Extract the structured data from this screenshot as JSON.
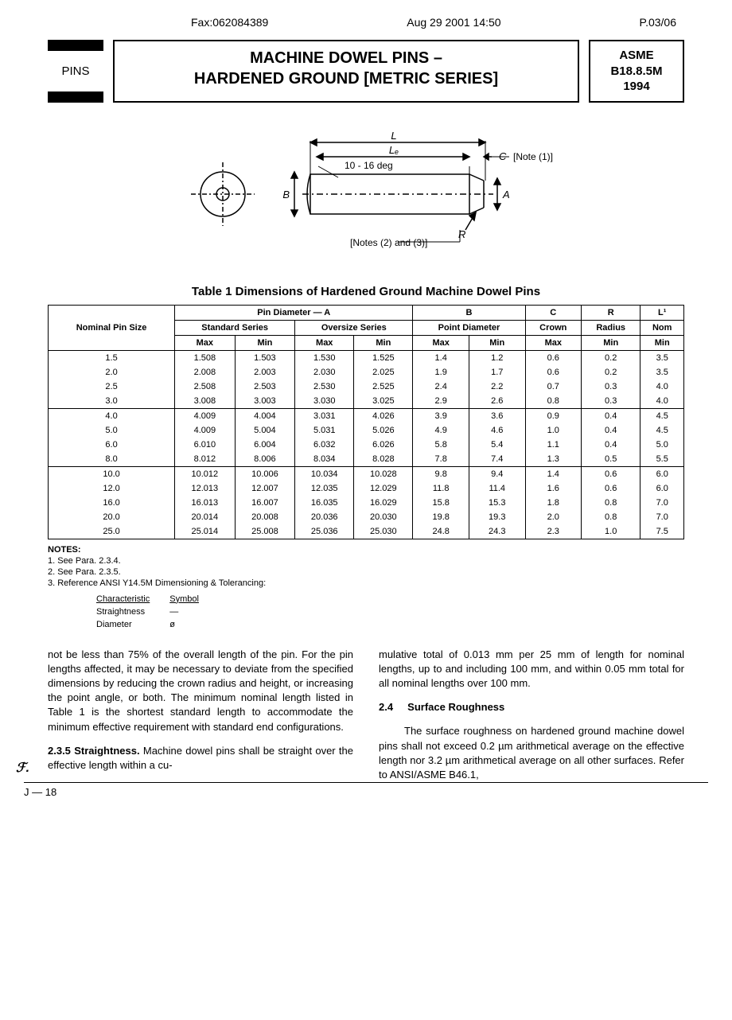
{
  "fax": {
    "number": "Fax:062084389",
    "date": "Aug 29 2001  14:50",
    "page": "P.03/06"
  },
  "pins_label": "PINS",
  "title": {
    "line1": "MACHINE DOWEL PINS –",
    "line2": "HARDENED GROUND [METRIC SERIES]"
  },
  "standard": {
    "org": "ASME",
    "num": "B18.8.5M",
    "year": "1994"
  },
  "diagram": {
    "angle_label": "10 - 16 deg",
    "note1": "[Note (1)]",
    "note23": "[Notes (2) and (3)]",
    "labels": {
      "L": "L",
      "Le": "Lₑ",
      "C": "C",
      "A": "A",
      "B": "B",
      "R": "R"
    }
  },
  "table": {
    "caption": "Table 1   Dimensions of Hardened Ground Machine Dowel Pins",
    "head": {
      "nominal": "Nominal Pin Size",
      "pin_diam": "Pin Diameter — A",
      "std_series": "Standard Series",
      "ovz_series": "Oversize Series",
      "B": "B",
      "pt_diam": "Point Diameter",
      "C": "C",
      "crown": "Crown",
      "R": "R",
      "radius": "Radius",
      "L1": "L¹",
      "nom": "Nom",
      "max": "Max",
      "min": "Min"
    },
    "groups": [
      {
        "rows": [
          {
            "size": "1.5",
            "std_max": "1.508",
            "std_min": "1.503",
            "ovz_max": "1.530",
            "ovz_min": "1.525",
            "b_max": "1.4",
            "b_min": "1.2",
            "c_max": "0.6",
            "r_min": "0.2",
            "l_min": "3.5"
          },
          {
            "size": "2.0",
            "std_max": "2.008",
            "std_min": "2.003",
            "ovz_max": "2.030",
            "ovz_min": "2.025",
            "b_max": "1.9",
            "b_min": "1.7",
            "c_max": "0.6",
            "r_min": "0.2",
            "l_min": "3.5"
          },
          {
            "size": "2.5",
            "std_max": "2.508",
            "std_min": "2.503",
            "ovz_max": "2.530",
            "ovz_min": "2.525",
            "b_max": "2.4",
            "b_min": "2.2",
            "c_max": "0.7",
            "r_min": "0.3",
            "l_min": "4.0"
          },
          {
            "size": "3.0",
            "std_max": "3.008",
            "std_min": "3.003",
            "ovz_max": "3.030",
            "ovz_min": "3.025",
            "b_max": "2.9",
            "b_min": "2.6",
            "c_max": "0.8",
            "r_min": "0.3",
            "l_min": "4.0"
          }
        ]
      },
      {
        "rows": [
          {
            "size": "4.0",
            "std_max": "4.009",
            "std_min": "4.004",
            "ovz_max": "3.031",
            "ovz_min": "4.026",
            "b_max": "3.9",
            "b_min": "3.6",
            "c_max": "0.9",
            "r_min": "0.4",
            "l_min": "4.5"
          },
          {
            "size": "5.0",
            "std_max": "4.009",
            "std_min": "5.004",
            "ovz_max": "5.031",
            "ovz_min": "5.026",
            "b_max": "4.9",
            "b_min": "4.6",
            "c_max": "1.0",
            "r_min": "0.4",
            "l_min": "4.5"
          },
          {
            "size": "6.0",
            "std_max": "6.010",
            "std_min": "6.004",
            "ovz_max": "6.032",
            "ovz_min": "6.026",
            "b_max": "5.8",
            "b_min": "5.4",
            "c_max": "1.1",
            "r_min": "0.4",
            "l_min": "5.0"
          },
          {
            "size": "8.0",
            "std_max": "8.012",
            "std_min": "8.006",
            "ovz_max": "8.034",
            "ovz_min": "8.028",
            "b_max": "7.8",
            "b_min": "7.4",
            "c_max": "1.3",
            "r_min": "0.5",
            "l_min": "5.5"
          }
        ]
      },
      {
        "rows": [
          {
            "size": "10.0",
            "std_max": "10.012",
            "std_min": "10.006",
            "ovz_max": "10.034",
            "ovz_min": "10.028",
            "b_max": "9.8",
            "b_min": "9.4",
            "c_max": "1.4",
            "r_min": "0.6",
            "l_min": "6.0"
          },
          {
            "size": "12.0",
            "std_max": "12.013",
            "std_min": "12.007",
            "ovz_max": "12.035",
            "ovz_min": "12.029",
            "b_max": "11.8",
            "b_min": "11.4",
            "c_max": "1.6",
            "r_min": "0.6",
            "l_min": "6.0"
          },
          {
            "size": "16.0",
            "std_max": "16.013",
            "std_min": "16.007",
            "ovz_max": "16.035",
            "ovz_min": "16.029",
            "b_max": "15.8",
            "b_min": "15.3",
            "c_max": "1.8",
            "r_min": "0.8",
            "l_min": "7.0"
          },
          {
            "size": "20.0",
            "std_max": "20.014",
            "std_min": "20.008",
            "ovz_max": "20.036",
            "ovz_min": "20.030",
            "b_max": "19.8",
            "b_min": "19.3",
            "c_max": "2.0",
            "r_min": "0.8",
            "l_min": "7.0"
          },
          {
            "size": "25.0",
            "std_max": "25.014",
            "std_min": "25.008",
            "ovz_max": "25.036",
            "ovz_min": "25.030",
            "b_max": "24.8",
            "b_min": "24.3",
            "c_max": "2.3",
            "r_min": "1.0",
            "l_min": "7.5"
          }
        ]
      }
    ]
  },
  "notes": {
    "title": "NOTES:",
    "items": [
      "1. See Para. 2.3.4.",
      "2. See Para. 2.3.5.",
      "3. Reference ANSI Y14.5M Dimensioning & Tolerancing:"
    ],
    "char_head_left": "Characteristic",
    "char_head_right": "Symbol",
    "char_rows": [
      {
        "l": "Straightness",
        "r": "—"
      },
      {
        "l": "Diameter",
        "r": "ø"
      }
    ]
  },
  "body": {
    "left_p1": "not be less than 75% of the overall length of the pin. For the pin lengths affected, it may be necessary to deviate from the specified dimensions by reducing the crown radius and height, or increasing the point angle, or both. The minimum nominal length listed in Table 1 is the shortest standard length to accommodate the minimum effective requirement with standard end configurations.",
    "left_p2_num": "2.3.5",
    "left_p2_title": "Straightness.",
    "left_p2_text": "Machine dowel pins shall be straight over the effective length within a cu-",
    "right_p1": "mulative total of 0.013 mm per 25 mm of length for nominal lengths, up to and including 100 mm, and within 0.05 mm total for all nominal lengths over 100 mm.",
    "right_sec_num": "2.4",
    "right_sec_title": "Surface Roughness",
    "right_p2": "The surface roughness on hardened ground machine dowel pins shall not exceed 0.2 µm arithmetical average on the effective length nor 3.2 µm arithmetical average on all other surfaces. Refer to ANSI/ASME B46.1,"
  },
  "footer_mark": "ℱ.",
  "page_num": "J — 18"
}
